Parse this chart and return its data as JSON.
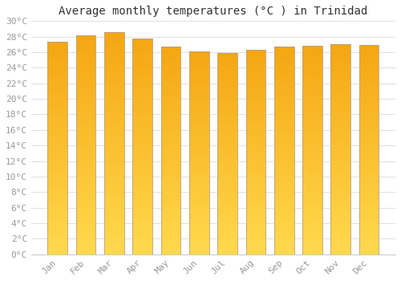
{
  "title": "Average monthly temperatures (°C ) in Trinidad",
  "months": [
    "Jan",
    "Feb",
    "Mar",
    "Apr",
    "May",
    "Jun",
    "Jul",
    "Aug",
    "Sep",
    "Oct",
    "Nov",
    "Dec"
  ],
  "values": [
    27.3,
    28.2,
    28.6,
    27.8,
    26.7,
    26.1,
    25.9,
    26.3,
    26.7,
    26.8,
    27.0,
    26.9
  ],
  "bar_color_top": "#F5A800",
  "bar_color_bottom": "#FFD94D",
  "bar_edge_color": "#B8A080",
  "background_color": "#FFFFFF",
  "plot_bg_color": "#FFFFFF",
  "grid_color": "#E0E0E0",
  "ylim": [
    0,
    30
  ],
  "ytick_step": 2,
  "title_fontsize": 10,
  "tick_fontsize": 8,
  "tick_color": "#999999"
}
